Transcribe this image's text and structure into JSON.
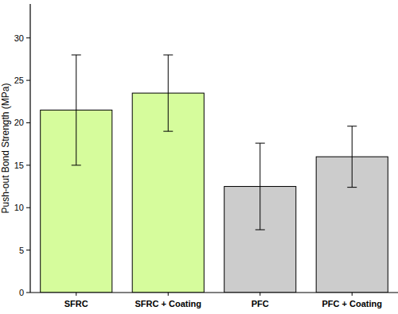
{
  "chart_data": {
    "type": "bar",
    "y_label": "Push-out Bond Strength (MPa)",
    "categories": [
      "SFRC",
      "SFRC + Coating",
      "PFC",
      "PFC + Coating"
    ],
    "values": [
      21.5,
      23.5,
      12.5,
      16
    ],
    "errors": [
      6.5,
      4.5,
      5.1,
      3.6
    ],
    "colors": [
      "#d6fc9c",
      "#d6fc9c",
      "#cccccc",
      "#cccccc"
    ],
    "ylim": [
      0,
      34
    ],
    "yticks": [
      0,
      5,
      10,
      15,
      20,
      25,
      30
    ],
    "grid": false
  }
}
